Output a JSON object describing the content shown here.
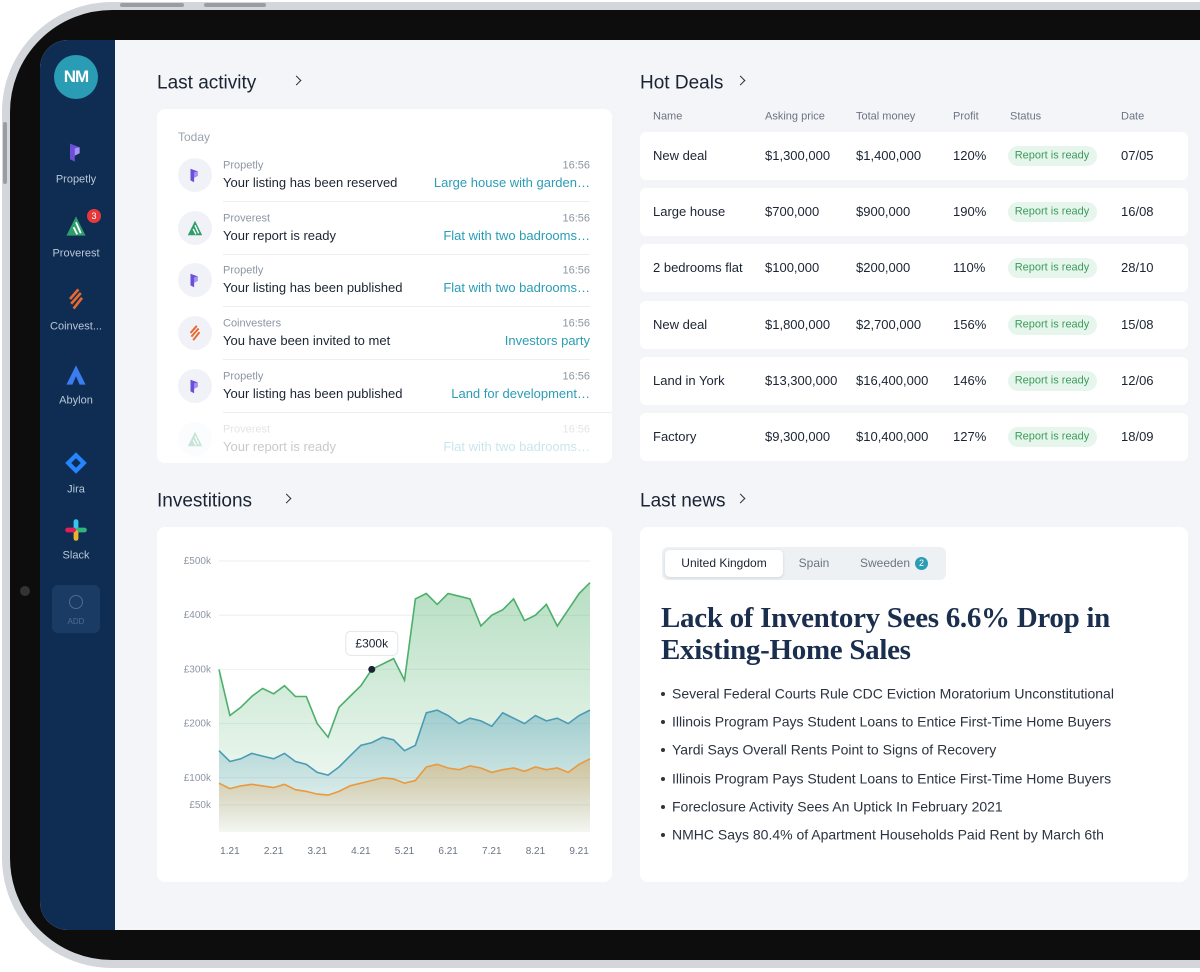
{
  "sidebar": {
    "logo": "NM",
    "apps": [
      {
        "name": "Propetly"
      },
      {
        "name": "Proverest",
        "badge": "3"
      },
      {
        "name": "Coinvest..."
      },
      {
        "name": "Abylon"
      },
      {
        "name": "Jira"
      },
      {
        "name": "Slack"
      }
    ],
    "add": "ADD"
  },
  "last_activity": {
    "title": "Last activity",
    "group": "Today",
    "items": [
      {
        "app": "Propetly",
        "time": "16:56",
        "text": "Your listing has been reserved",
        "link": "Large house with garden…"
      },
      {
        "app": "Proverest",
        "time": "16:56",
        "text": "Your report is ready",
        "link": "Flat with two badrooms…"
      },
      {
        "app": "Propetly",
        "time": "16:56",
        "text": "Your listing has been published",
        "link": "Flat with two badrooms…"
      },
      {
        "app": "Coinvesters",
        "time": "16:56",
        "text": "You have been invited to met",
        "link": "Investors party"
      },
      {
        "app": "Propetly",
        "time": "16:56",
        "text": "Your listing has been published",
        "link": "Land for development…"
      },
      {
        "app": "Proverest",
        "time": "16:56",
        "text": "Your report is ready",
        "link": "Flat with two badrooms…"
      }
    ]
  },
  "hot_deals": {
    "title": "Hot Deals",
    "columns": [
      "Name",
      "Asking price",
      "Total money",
      "Profit",
      "Status",
      "Date"
    ],
    "rows": [
      [
        "New deal",
        "$1,300,000",
        "$1,400,000",
        "120%",
        "Report is ready",
        "07/05"
      ],
      [
        "Large house",
        "$700,000",
        "$900,000",
        "190%",
        "Report is ready",
        "16/08"
      ],
      [
        "2 bedrooms flat",
        "$100,000",
        "$200,000",
        "110%",
        "Report is ready",
        "28/10"
      ],
      [
        "New deal",
        "$1,800,000",
        "$2,700,000",
        "156%",
        "Report is ready",
        "15/08"
      ],
      [
        "Land in York",
        "$13,300,000",
        "$16,400,000",
        "146%",
        "Report is ready",
        "12/06"
      ],
      [
        "Factory",
        "$9,300,000",
        "$10,400,000",
        "127%",
        "Report is ready",
        "18/09"
      ]
    ]
  },
  "chart_data": {
    "type": "area",
    "title": "Investitions",
    "x": [
      0.75,
      1,
      1.25,
      1.5,
      1.75,
      2,
      2.25,
      2.5,
      2.75,
      3,
      3.25,
      3.5,
      3.75,
      4,
      4.25,
      4.5,
      4.75,
      5,
      5.25,
      5.5,
      5.75,
      6,
      6.25,
      6.5,
      6.75,
      7,
      7.25,
      7.5,
      7.75,
      8,
      8.25,
      8.5,
      8.75,
      9,
      9.25
    ],
    "series": [
      {
        "color": "#4caf6a",
        "values": [
          300,
          215,
          230,
          250,
          265,
          255,
          270,
          250,
          250,
          200,
          175,
          230,
          250,
          270,
          300,
          310,
          320,
          280,
          430,
          440,
          420,
          440,
          435,
          430,
          380,
          400,
          410,
          430,
          390,
          400,
          420,
          380,
          410,
          440,
          460
        ]
      },
      {
        "color": "#4a9bb5",
        "values": [
          150,
          130,
          135,
          145,
          140,
          135,
          145,
          130,
          125,
          110,
          105,
          120,
          140,
          160,
          165,
          175,
          170,
          150,
          160,
          220,
          225,
          215,
          200,
          210,
          205,
          195,
          220,
          210,
          200,
          215,
          205,
          210,
          200,
          215,
          225
        ]
      },
      {
        "color": "#e89a3c",
        "values": [
          90,
          80,
          85,
          88,
          85,
          82,
          88,
          78,
          75,
          70,
          68,
          75,
          85,
          90,
          95,
          100,
          98,
          90,
          95,
          120,
          125,
          118,
          115,
          122,
          118,
          110,
          115,
          118,
          112,
          120,
          115,
          118,
          110,
          125,
          135
        ]
      }
    ],
    "xlim": [
      0.75,
      9.25
    ],
    "xticks": [
      {
        "value": 1,
        "label": "1.21"
      },
      {
        "value": 2,
        "label": "2.21"
      },
      {
        "value": 3,
        "label": "3.21"
      },
      {
        "value": 4,
        "label": "4.21"
      },
      {
        "value": 5,
        "label": "5.21"
      },
      {
        "value": 6,
        "label": "6.21"
      },
      {
        "value": 7,
        "label": "7.21"
      },
      {
        "value": 8,
        "label": "8.21"
      },
      {
        "value": 9,
        "label": "9.21"
      }
    ],
    "ylim": [
      0,
      500
    ],
    "yticks": [
      {
        "value": 500,
        "label": "£500k"
      },
      {
        "value": 400,
        "label": "£400k"
      },
      {
        "value": 300,
        "label": "£300k"
      },
      {
        "value": 200,
        "label": "£200k"
      },
      {
        "value": 100,
        "label": "£100k"
      },
      {
        "value": 50,
        "label": "£50k"
      }
    ],
    "grid": true,
    "annotation": {
      "label": "£300k",
      "x": 4.25,
      "y": 300
    }
  },
  "last_news": {
    "title": "Last news",
    "tabs": [
      {
        "label": "United Kingdom"
      },
      {
        "label": "Spain"
      },
      {
        "label": "Sweeden",
        "badge": "2"
      }
    ],
    "headline": "Lack of Inventory Sees 6.6% Drop in Existing-Home Sales",
    "items": [
      "Several Federal Courts Rule CDC Eviction Moratorium Unconstitutional",
      "Illinois Program Pays Student Loans to Entice First-Time Home Buyers",
      "Yardi Says Overall Rents Point to Signs of Recovery",
      "Illinois Program Pays Student Loans to Entice First-Time Home Buyers",
      "Foreclosure Activity Sees An Uptick In February 2021",
      "NMHC Says 80.4% of Apartment Households Paid Rent by March 6th"
    ]
  }
}
